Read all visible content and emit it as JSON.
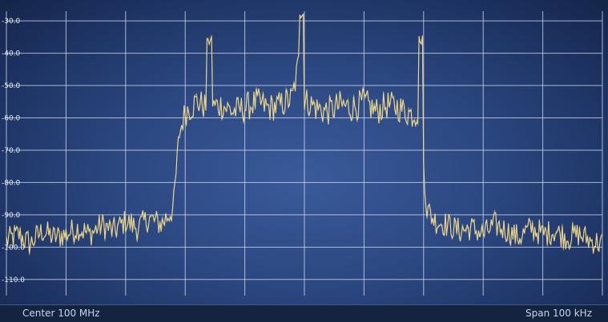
{
  "chart_data": {
    "type": "line",
    "ylim": [
      -115,
      -27
    ],
    "y_ticks": [
      "-30.0",
      "-40.0",
      "-50.0",
      "-60.0",
      "-70.0",
      "-80.0",
      "-90.0",
      "-100.0",
      "-110.0"
    ],
    "y_tick_values": [
      -30,
      -40,
      -50,
      -60,
      -70,
      -80,
      -90,
      -100,
      -110
    ],
    "x_divisions": 10,
    "grid": true,
    "trace_color": "#f1d98a",
    "series": [
      {
        "x": [
          0,
          0.2,
          0.4,
          0.6,
          0.8,
          1.0,
          1.2,
          1.4,
          1.6,
          1.8,
          2.0,
          2.2,
          2.4,
          2.6,
          2.8,
          2.9,
          3.0,
          3.2,
          3.4,
          3.6,
          3.8,
          4.0,
          4.2,
          4.4,
          4.6,
          4.8,
          4.95,
          5.0,
          5.05,
          5.2,
          5.4,
          5.6,
          5.8,
          6.0,
          6.2,
          6.4,
          6.6,
          6.8,
          6.95,
          7.05,
          7.2,
          7.4,
          7.6,
          7.8,
          8.0,
          8.2,
          8.4,
          8.6,
          8.8,
          9.0,
          9.2,
          9.4,
          9.6,
          9.8,
          10.0
        ],
        "y": [
          -98,
          -96,
          -99,
          -95,
          -97,
          -96,
          -94,
          -96,
          -93,
          -95,
          -92,
          -94,
          -91,
          -93,
          -88,
          -65,
          -58,
          -55,
          -57,
          -56,
          -58,
          -57,
          -55,
          -57,
          -56,
          -54,
          -38,
          -56,
          -55,
          -57,
          -58,
          -56,
          -57,
          -55,
          -58,
          -56,
          -57,
          -59,
          -58,
          -88,
          -92,
          -93,
          -95,
          -94,
          -96,
          -93,
          -95,
          -97,
          -94,
          -96,
          -95,
          -97,
          -96,
          -98,
          -99
        ]
      }
    ]
  },
  "footer": {
    "center": "Center 100 MHz",
    "span": "Span 100 kHz"
  }
}
